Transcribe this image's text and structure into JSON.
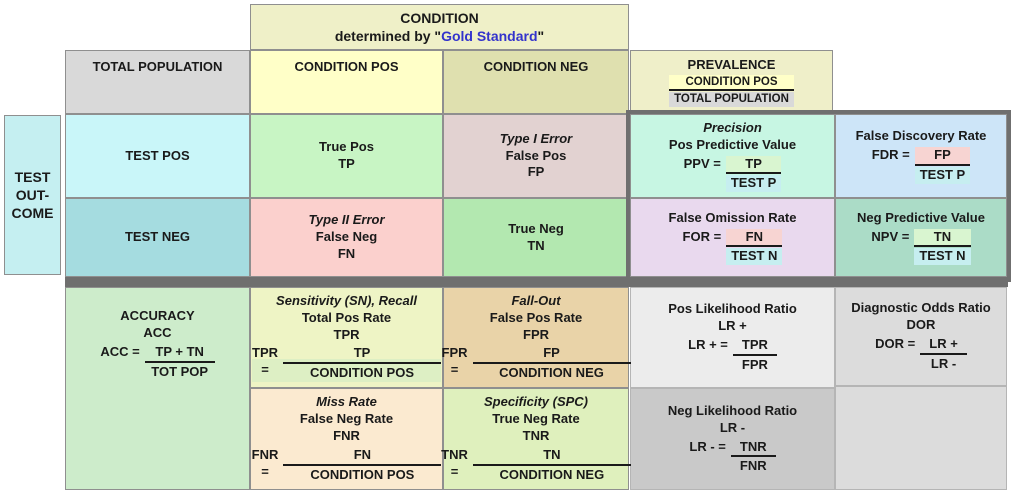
{
  "palette": {
    "link_blue": "#3333cc",
    "frame_grey": "#6f6f6f",
    "highlight_yellow": "#ffffc8",
    "highlight_grey": "#d9d9d9",
    "highlight_green": "#d9f5d0",
    "highlight_cyan": "#c6eef0",
    "highlight_pink": "#f7d4d2"
  },
  "header": {
    "condition_title": "CONDITION",
    "determined_prefix": "determined by \"",
    "gold_standard": "Gold Standard",
    "determined_suffix": "\"",
    "total_population": "TOTAL POPULATION",
    "condition_pos": "CONDITION POS",
    "condition_neg": "CONDITION NEG",
    "prevalence": {
      "title": "PREVALENCE",
      "num": "CONDITION POS",
      "den": "TOTAL POPULATION"
    }
  },
  "left": {
    "test_outcome": [
      "TEST",
      "OUT-",
      "COME"
    ],
    "test_pos": "TEST POS",
    "test_neg": "TEST NEG"
  },
  "matrix": {
    "tp": {
      "name": "True Pos",
      "abbr": "TP"
    },
    "fp": {
      "title": "Type I Error",
      "name": "False Pos",
      "abbr": "FP"
    },
    "fn": {
      "title": "Type II Error",
      "name": "False Neg",
      "abbr": "FN"
    },
    "tn": {
      "name": "True Neg",
      "abbr": "TN"
    }
  },
  "metrics": {
    "ppv": {
      "title": "Precision",
      "name": "Pos Predictive Value",
      "lhs": "PPV =",
      "num": "TP",
      "den": "TEST P"
    },
    "fdr": {
      "name": "False Discovery Rate",
      "lhs": "FDR =",
      "num": "FP",
      "den": "TEST P"
    },
    "for": {
      "name": "False Omission Rate",
      "lhs": "FOR =",
      "num": "FN",
      "den": "TEST N"
    },
    "npv": {
      "name": "Neg Predictive Value",
      "lhs": "NPV =",
      "num": "TN",
      "den": "TEST N"
    },
    "acc": {
      "name": "ACCURACY",
      "abbr": "ACC",
      "lhs": "ACC =",
      "num": "TP + TN",
      "den": "TOT POP"
    },
    "tpr": {
      "title": "Sensitivity (SN), Recall",
      "name": "Total Pos Rate",
      "abbr": "TPR",
      "lhs": "TPR =",
      "num": "TP",
      "den": "CONDITION POS"
    },
    "fpr": {
      "title": "Fall-Out",
      "name": "False Pos Rate",
      "abbr": "FPR",
      "lhs": "FPR =",
      "num": "FP",
      "den": "CONDITION NEG"
    },
    "fnr": {
      "title": "Miss Rate",
      "name": "False Neg Rate",
      "abbr": "FNR",
      "lhs": "FNR =",
      "num": "FN",
      "den": "CONDITION POS"
    },
    "tnr": {
      "title": "Specificity (SPC)",
      "name": "True Neg Rate",
      "abbr": "TNR",
      "lhs": "TNR =",
      "num": "TN",
      "den": "CONDITION NEG"
    },
    "pos_lr": {
      "name": "Pos Likelihood Ratio",
      "abbr": "LR +",
      "lhs": "LR +  =",
      "num": "TPR",
      "den": "FPR"
    },
    "dor": {
      "name": "Diagnostic Odds Ratio",
      "abbr": "DOR",
      "lhs": "DOR =",
      "num": "LR +",
      "den": "LR -"
    },
    "neg_lr": {
      "name": "Neg Likelihood Ratio",
      "abbr": "LR -",
      "lhs": "LR -  =",
      "num": "TNR",
      "den": "FNR"
    }
  }
}
